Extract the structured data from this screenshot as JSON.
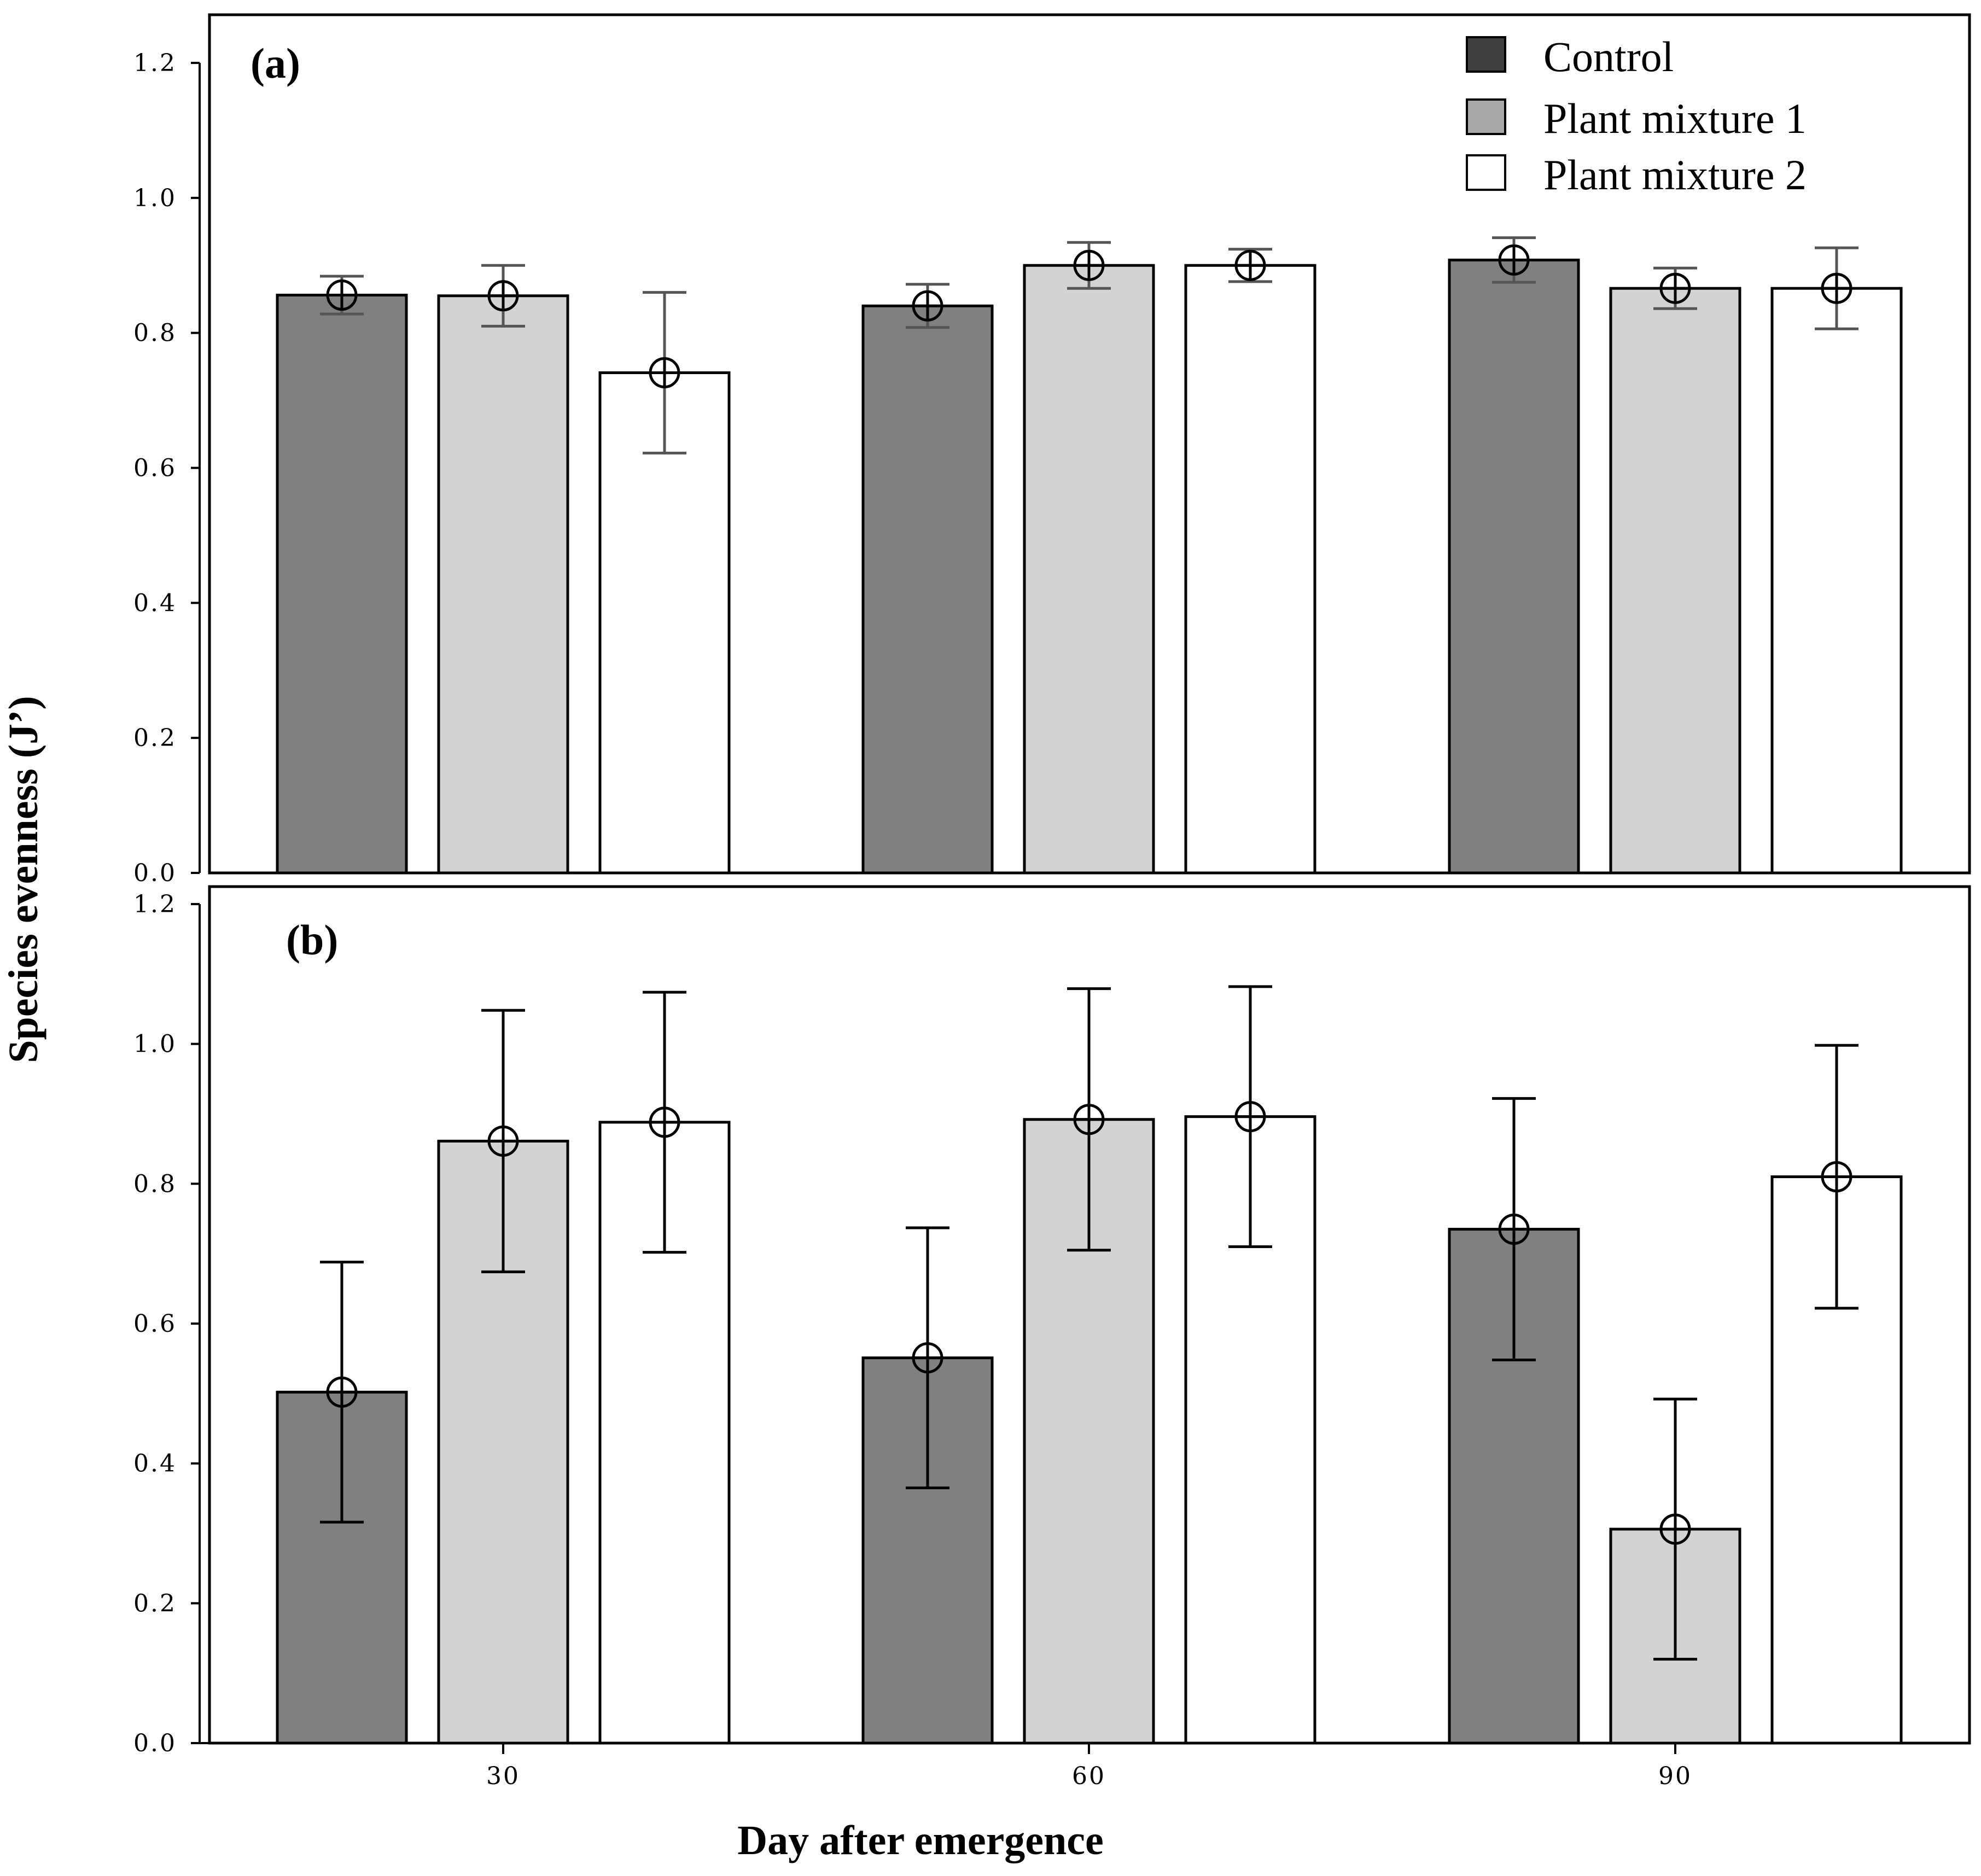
{
  "chart_data": [
    {
      "type": "bar",
      "panel_label": "(a)",
      "categories": [
        "30",
        "60",
        "90"
      ],
      "series": [
        {
          "name": "Control",
          "values": [
            0.856,
            0.84,
            0.908
          ],
          "errors": [
            0.028,
            0.032,
            0.033
          ],
          "color": "#808080"
        },
        {
          "name": "Plant mixture 1",
          "values": [
            0.855,
            0.9,
            0.866
          ],
          "errors": [
            0.045,
            0.034,
            0.03
          ],
          "color": "#d3d3d3"
        },
        {
          "name": "Plant mixture 2",
          "values": [
            0.741,
            0.9,
            0.866
          ],
          "errors": [
            0.119,
            0.024,
            0.06
          ],
          "color": "#ffffff"
        }
      ],
      "ylim": [
        0,
        1.2
      ],
      "yticks": [
        "0.0",
        "0.2",
        "0.4",
        "0.6",
        "0.8",
        "1.0",
        "1.2"
      ],
      "error_bar_color": "#555555"
    },
    {
      "type": "bar",
      "panel_label": "(b)",
      "categories": [
        "30",
        "60",
        "90"
      ],
      "series": [
        {
          "name": "Control",
          "values": [
            0.502,
            0.551,
            0.735
          ],
          "errors": [
            0.186,
            0.186,
            0.187
          ],
          "color": "#808080"
        },
        {
          "name": "Plant mixture 1",
          "values": [
            0.861,
            0.892,
            0.306
          ],
          "errors": [
            0.187,
            0.187,
            0.186
          ],
          "color": "#d3d3d3"
        },
        {
          "name": "Plant mixture 2",
          "values": [
            0.888,
            0.896,
            0.81
          ],
          "errors": [
            0.186,
            0.186,
            0.188
          ],
          "color": "#ffffff"
        }
      ],
      "ylim": [
        0,
        1.2
      ],
      "yticks": [
        "0.0",
        "0.2",
        "0.4",
        "0.6",
        "0.8",
        "1.0",
        "1.2"
      ],
      "error_bar_color": "#000000"
    }
  ],
  "xlabel": "Day after emergence",
  "ylabel": "Species evenness (J’)",
  "legend": [
    {
      "name": "Control",
      "color": "#404040"
    },
    {
      "name": "Plant mixture 1",
      "color": "#a9a9a9"
    },
    {
      "name": "Plant mixture 2",
      "color": "#ffffff"
    }
  ]
}
